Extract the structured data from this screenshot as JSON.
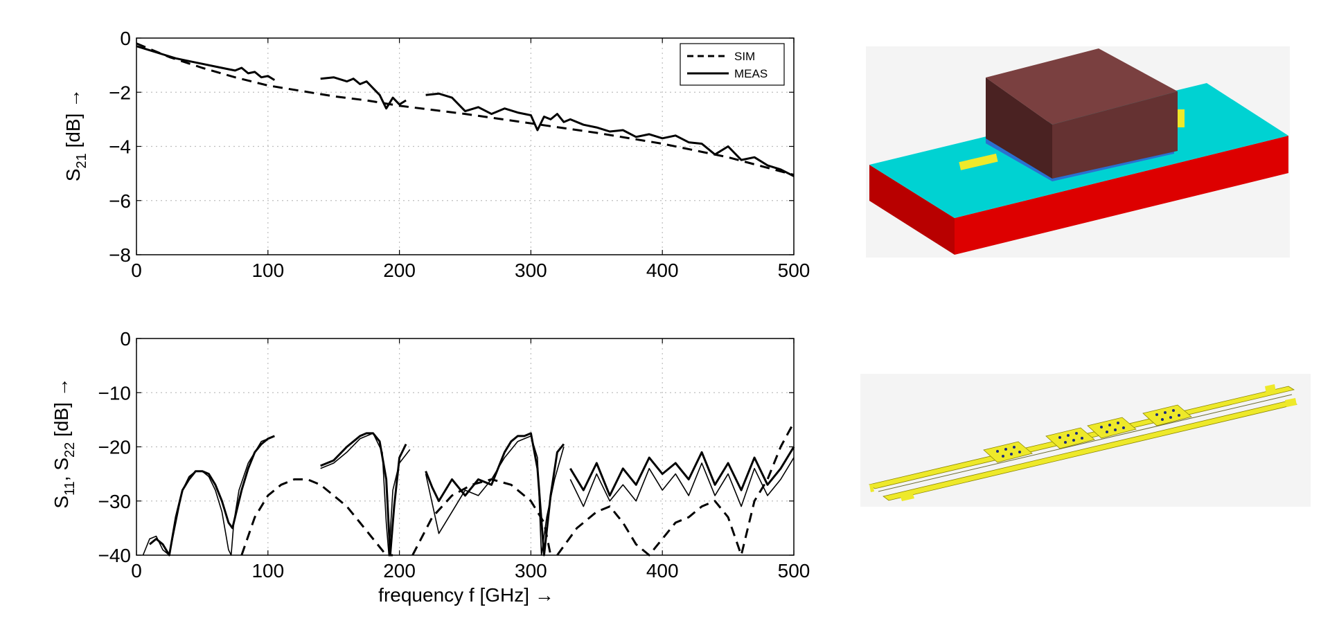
{
  "chart_data": [
    {
      "type": "line",
      "xlabel": "",
      "ylabel": "S21 [dB] →",
      "ylabel_parts": {
        "main": "S",
        "sub": "21",
        "rest": " [dB] →"
      },
      "xlim": [
        0,
        500
      ],
      "ylim": [
        -8,
        0
      ],
      "xticks": [
        "0",
        "100",
        "200",
        "300",
        "400",
        "500"
      ],
      "yticks": [
        "0",
        "−2",
        "−4",
        "−6",
        "−8"
      ],
      "grid": true,
      "legend": {
        "placement": "top-right",
        "entries": [
          "SIM",
          "MEAS"
        ]
      },
      "series": [
        {
          "name": "SIM",
          "style": "dashed",
          "x": [
            0,
            25,
            50,
            75,
            100,
            125,
            150,
            175,
            200,
            250,
            300,
            350,
            400,
            450,
            500
          ],
          "y": [
            -0.2,
            -0.7,
            -1.1,
            -1.45,
            -1.75,
            -1.95,
            -2.15,
            -2.3,
            -2.5,
            -2.8,
            -3.15,
            -3.5,
            -3.9,
            -4.4,
            -5.05
          ]
        },
        {
          "name": "MEAS",
          "style": "solid",
          "segments": [
            {
              "x": [
                0,
                10,
                20,
                30,
                40,
                50,
                60,
                70,
                75,
                80,
                85,
                90,
                95,
                100,
                105
              ],
              "y": [
                -0.3,
                -0.45,
                -0.6,
                -0.75,
                -0.85,
                -0.95,
                -1.05,
                -1.15,
                -1.2,
                -1.1,
                -1.3,
                -1.25,
                -1.45,
                -1.4,
                -1.55
              ]
            },
            {
              "x": [
                140,
                150,
                160,
                165,
                170,
                175,
                180,
                185,
                190,
                195,
                200,
                205
              ],
              "y": [
                -1.5,
                -1.45,
                -1.6,
                -1.5,
                -1.7,
                -1.6,
                -1.85,
                -2.1,
                -2.6,
                -2.2,
                -2.45,
                -2.3
              ]
            },
            {
              "x": [
                220,
                230,
                240,
                250,
                260,
                270,
                280,
                290,
                300,
                305,
                310,
                315,
                320,
                325,
                330,
                340,
                350,
                360,
                370,
                380,
                390,
                400,
                410,
                420,
                430,
                440,
                450,
                460,
                470,
                480,
                490,
                500
              ],
              "y": [
                -2.1,
                -2.05,
                -2.2,
                -2.7,
                -2.55,
                -2.8,
                -2.6,
                -2.75,
                -2.85,
                -3.4,
                -2.9,
                -3.0,
                -2.8,
                -3.1,
                -3.0,
                -3.2,
                -3.3,
                -3.45,
                -3.4,
                -3.65,
                -3.55,
                -3.7,
                -3.6,
                -3.85,
                -3.9,
                -4.3,
                -4.0,
                -4.5,
                -4.4,
                -4.7,
                -4.85,
                -5.1
              ]
            }
          ]
        }
      ]
    },
    {
      "type": "line",
      "xlabel": "frequency f [GHz] →",
      "ylabel": "S11, S22 [dB] →",
      "ylabel_parts": {
        "main1": "S",
        "sub1": "11",
        "sep": ", S",
        "sub2": "22",
        "rest": " [dB] →"
      },
      "xlim": [
        0,
        500
      ],
      "ylim": [
        -40,
        0
      ],
      "xticks": [
        "0",
        "100",
        "200",
        "300",
        "400",
        "500"
      ],
      "yticks": [
        "0",
        "−10",
        "−20",
        "−30",
        "−40"
      ],
      "grid": true,
      "series": [
        {
          "name": "SIM",
          "style": "dashed",
          "segments": [
            {
              "x": [
                80,
                90,
                100,
                110,
                120,
                130,
                140,
                150,
                160,
                170,
                180,
                190,
                195
              ],
              "y": [
                -40,
                -33,
                -29,
                -27,
                -26,
                -26,
                -27,
                -29,
                -31,
                -34,
                -37,
                -40,
                -40
              ]
            },
            {
              "x": [
                210,
                225,
                240,
                255,
                270,
                285,
                300,
                310,
                315
              ],
              "y": [
                -40,
                -33,
                -29,
                -27,
                -26,
                -27,
                -30,
                -34,
                -40
              ]
            },
            {
              "x": [
                320,
                335,
                350,
                360,
                370,
                380,
                390,
                400,
                410,
                420,
                430,
                440,
                450,
                460,
                470,
                480,
                490,
                500
              ],
              "y": [
                -40,
                -35,
                -32,
                -31,
                -34,
                -38,
                -40,
                -37,
                -34,
                -33,
                -31,
                -30,
                -33,
                -40,
                -30,
                -26,
                -20,
                -15.5
              ]
            }
          ]
        },
        {
          "name": "S11",
          "style": "solid-thick",
          "segments": [
            {
              "x": [
                10,
                15,
                20,
                25,
                30,
                35,
                40,
                45,
                50,
                55,
                60,
                65,
                70,
                73,
                76,
                80,
                85,
                90,
                95,
                100,
                105
              ],
              "y": [
                -38,
                -37,
                -38,
                -40,
                -33,
                -28,
                -26,
                -24.5,
                -24.5,
                -25,
                -27,
                -30,
                -34,
                -35,
                -32,
                -28,
                -24,
                -21,
                -19.5,
                -18.5,
                -18
              ]
            },
            {
              "x": [
                140,
                150,
                160,
                170,
                175,
                180,
                185,
                190,
                193,
                196,
                200,
                205
              ],
              "y": [
                -23.5,
                -22.5,
                -20,
                -18,
                -17.5,
                -17.5,
                -19,
                -26,
                -40,
                -31,
                -22,
                -19.5
              ]
            },
            {
              "x": [
                220,
                225,
                230,
                240,
                250,
                260,
                270,
                280,
                285,
                290,
                295,
                300,
                305,
                310,
                315,
                320,
                325
              ],
              "y": [
                -24.5,
                -27.5,
                -30,
                -26,
                -29,
                -26,
                -27,
                -21,
                -19,
                -18,
                -18,
                -17.5,
                -24,
                -40,
                -29,
                -21,
                -19.5
              ]
            },
            {
              "x": [
                330,
                340,
                350,
                360,
                370,
                380,
                390,
                400,
                410,
                420,
                430,
                440,
                450,
                460,
                470,
                480,
                490,
                500
              ],
              "y": [
                -24,
                -28,
                -23,
                -29,
                -24,
                -27,
                -22,
                -25,
                -23,
                -26,
                -21,
                -27,
                -23,
                -28,
                -22,
                -27,
                -24,
                -20
              ]
            }
          ]
        },
        {
          "name": "S22",
          "style": "solid-thin",
          "segments": [
            {
              "x": [
                5,
                10,
                15,
                20,
                25,
                30,
                35,
                40,
                45,
                50,
                55,
                60,
                65,
                70,
                72,
                74,
                78,
                85,
                95,
                105
              ],
              "y": [
                -40,
                -37,
                -36.5,
                -39,
                -40,
                -34,
                -28,
                -25.5,
                -24.5,
                -24.5,
                -25.5,
                -28,
                -32,
                -39,
                -40,
                -34,
                -28,
                -23,
                -19,
                -18
              ]
            },
            {
              "x": [
                140,
                150,
                160,
                170,
                180,
                187,
                190,
                192,
                195,
                200,
                208
              ],
              "y": [
                -24,
                -23,
                -21,
                -18.5,
                -17.5,
                -21,
                -34,
                -40,
                -28,
                -23,
                -20.5
              ]
            },
            {
              "x": [
                220,
                230,
                240,
                250,
                260,
                270,
                280,
                290,
                300,
                305,
                308,
                312,
                318,
                325
              ],
              "y": [
                -25,
                -36,
                -32,
                -28,
                -29,
                -26,
                -22,
                -19,
                -18,
                -22,
                -40,
                -33,
                -26,
                -20
              ]
            },
            {
              "x": [
                330,
                340,
                350,
                360,
                370,
                380,
                390,
                400,
                410,
                420,
                430,
                440,
                450,
                460,
                470,
                480,
                490,
                500
              ],
              "y": [
                -26,
                -31,
                -25,
                -30,
                -27,
                -30,
                -24,
                -28,
                -25,
                -29,
                -23,
                -29,
                -25,
                -31,
                -24,
                -29,
                -26,
                -22
              ]
            }
          ]
        }
      ]
    }
  ],
  "colors": {
    "substrate_top": "#00d2d2",
    "substrate_side": "#dd0000",
    "chip": "#6a3535",
    "metal": "#eee92a",
    "vias": "#1a2a80"
  }
}
